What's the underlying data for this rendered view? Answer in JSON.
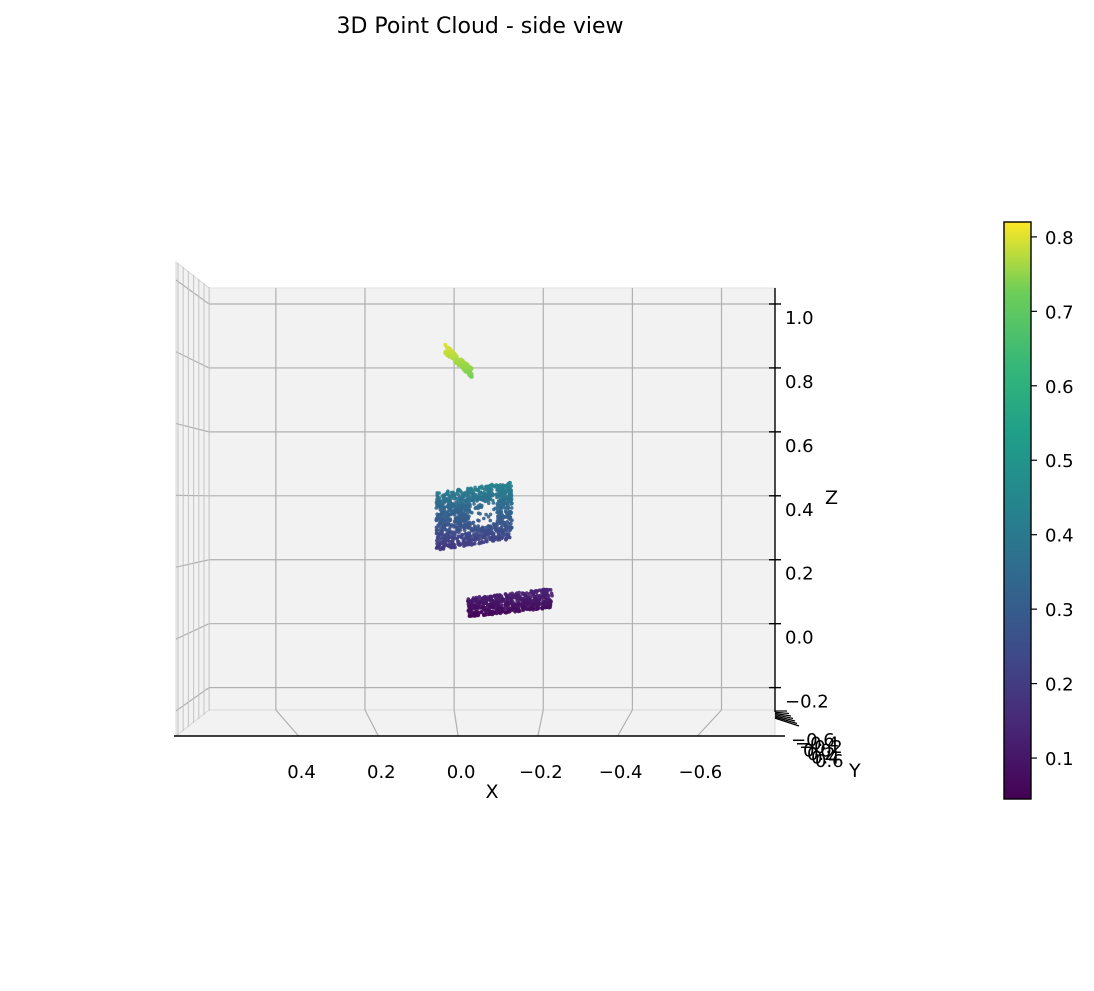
{
  "chart_data": {
    "type": "scatter",
    "projection": "3d",
    "view": "side view",
    "title": "3D Point Cloud - side view",
    "xlabel": "X",
    "ylabel": "Y",
    "zlabel": "Z",
    "x_ticks": [
      "0.4",
      "0.2",
      "0.0",
      "−0.2",
      "−0.4",
      "−0.6"
    ],
    "z_ticks": [
      "1.0",
      "0.8",
      "0.6",
      "0.4",
      "0.2",
      "0.0",
      "−0.2"
    ],
    "y_ticks_overlapping": [
      "−0.6",
      "−0.4",
      "−0.2",
      "0.0",
      "0.2",
      "0.4",
      "0.6"
    ],
    "xlim": [
      0.55,
      -0.72
    ],
    "zlim": [
      -0.27,
      1.05
    ],
    "grid": true,
    "colormap": "viridis",
    "colorbar": {
      "ticks": [
        "0.1",
        "0.2",
        "0.3",
        "0.4",
        "0.5",
        "0.6",
        "0.7",
        "0.8"
      ],
      "range": [
        0.045,
        0.82
      ],
      "placement": "right"
    },
    "clusters": [
      {
        "name": "",
        "x_range": [
          0.02,
          -0.04
        ],
        "z_range": [
          0.77,
          0.86
        ],
        "color_value": [
          0.73,
          0.79
        ]
      },
      {
        "name": "",
        "x_range": [
          0.04,
          -0.13
        ],
        "z_range": [
          0.23,
          0.41
        ],
        "color_value": [
          0.18,
          0.4
        ]
      },
      {
        "name": "",
        "x_range": [
          -0.03,
          -0.22
        ],
        "z_range": [
          0.02,
          0.08
        ],
        "color_value": [
          0.05,
          0.11
        ]
      }
    ]
  }
}
